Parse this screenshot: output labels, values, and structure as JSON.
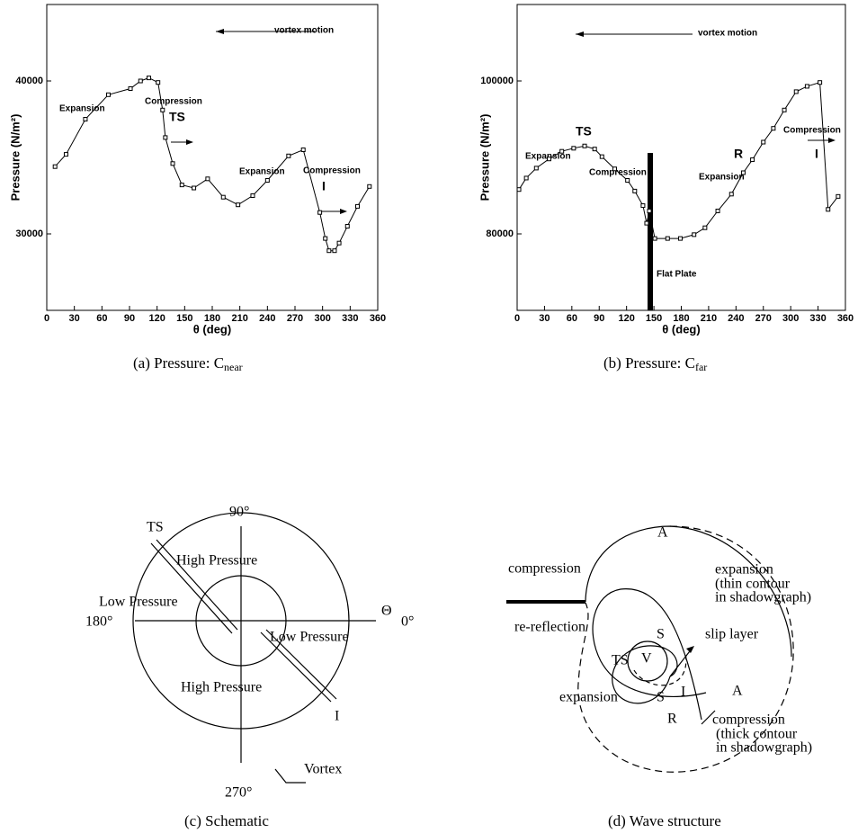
{
  "chart_data": [
    {
      "type": "line",
      "y_label": "Pressure (N/m²)",
      "x_label": "θ (deg)",
      "caption": "(a)  Pressure:  C",
      "caption_sub": "near",
      "x": [
        9,
        21,
        42,
        67,
        91,
        102,
        111,
        121,
        126,
        129,
        137,
        147,
        160,
        175,
        192,
        208,
        224,
        240,
        263,
        279,
        297,
        303,
        307,
        313,
        318,
        327,
        338,
        351
      ],
      "values": [
        34400,
        35200,
        37500,
        39100,
        39500,
        40000,
        40200,
        39900,
        38100,
        36300,
        34600,
        33200,
        33000,
        33600,
        32400,
        31900,
        32500,
        33500,
        35100,
        35500,
        31400,
        29700,
        28900,
        28900,
        29400,
        30500,
        31800,
        33100
      ],
      "color": "#000000",
      "xlim": [
        0,
        360
      ],
      "xticks": [
        0,
        30,
        60,
        90,
        120,
        150,
        180,
        210,
        240,
        270,
        300,
        330,
        360
      ],
      "ylim": [
        25000,
        45000
      ],
      "yticks": [
        30000,
        40000
      ],
      "annotations": [
        "vortex motion",
        "Expansion",
        "Compression",
        "TS",
        "Expansion",
        "Compression",
        "I"
      ]
    },
    {
      "type": "line",
      "y_label": "Pressure (N/m²)",
      "x_label": "θ (deg)",
      "caption": "(b)  Pressure:  C",
      "caption_sub": "far",
      "x": [
        2,
        10,
        21,
        35,
        49,
        62,
        74,
        85,
        93,
        107,
        121,
        129,
        138,
        142,
        145,
        151,
        165,
        179,
        194,
        206,
        220,
        235,
        248,
        258,
        270,
        281,
        293,
        306,
        318,
        332,
        341,
        352
      ],
      "values": [
        85800,
        87300,
        88600,
        89800,
        90800,
        91200,
        91500,
        91100,
        90100,
        88500,
        87000,
        85600,
        83700,
        81400,
        83000,
        79400,
        79400,
        79400,
        79900,
        80800,
        83000,
        85200,
        88000,
        89700,
        92000,
        93800,
        96200,
        98600,
        99300,
        99800,
        83200,
        84900
      ],
      "color": "#000000",
      "xlim": [
        0,
        360
      ],
      "xticks": [
        0,
        30,
        60,
        90,
        120,
        150,
        180,
        210,
        240,
        270,
        300,
        330,
        360
      ],
      "ylim": [
        70000,
        110000
      ],
      "yticks": [
        80000,
        100000
      ],
      "annotations": [
        "vortex motion",
        "TS",
        "Expansion",
        "Compression",
        "Flat Plate",
        "R",
        "Expansion",
        "Compression",
        "I"
      ]
    }
  ],
  "diagrams": [
    {
      "caption": "(c)  Schematic",
      "labels": [
        "90°",
        "180°",
        "0°",
        "270°",
        "Θ",
        "TS",
        "High Pressure",
        "Low Pressure",
        "Low Pressure",
        "High Pressure",
        "I",
        "Vortex"
      ]
    },
    {
      "caption": "(d)  Wave  structure",
      "labels": [
        "A",
        "compression",
        "expansion",
        "(thin contour",
        "in shadowgraph)",
        "re-reflection",
        "S",
        "slip layer",
        "TS",
        "V",
        "I",
        "A",
        "expansion",
        "S",
        "R",
        "compression",
        "(thick contour",
        "in shadowgraph)"
      ]
    }
  ]
}
